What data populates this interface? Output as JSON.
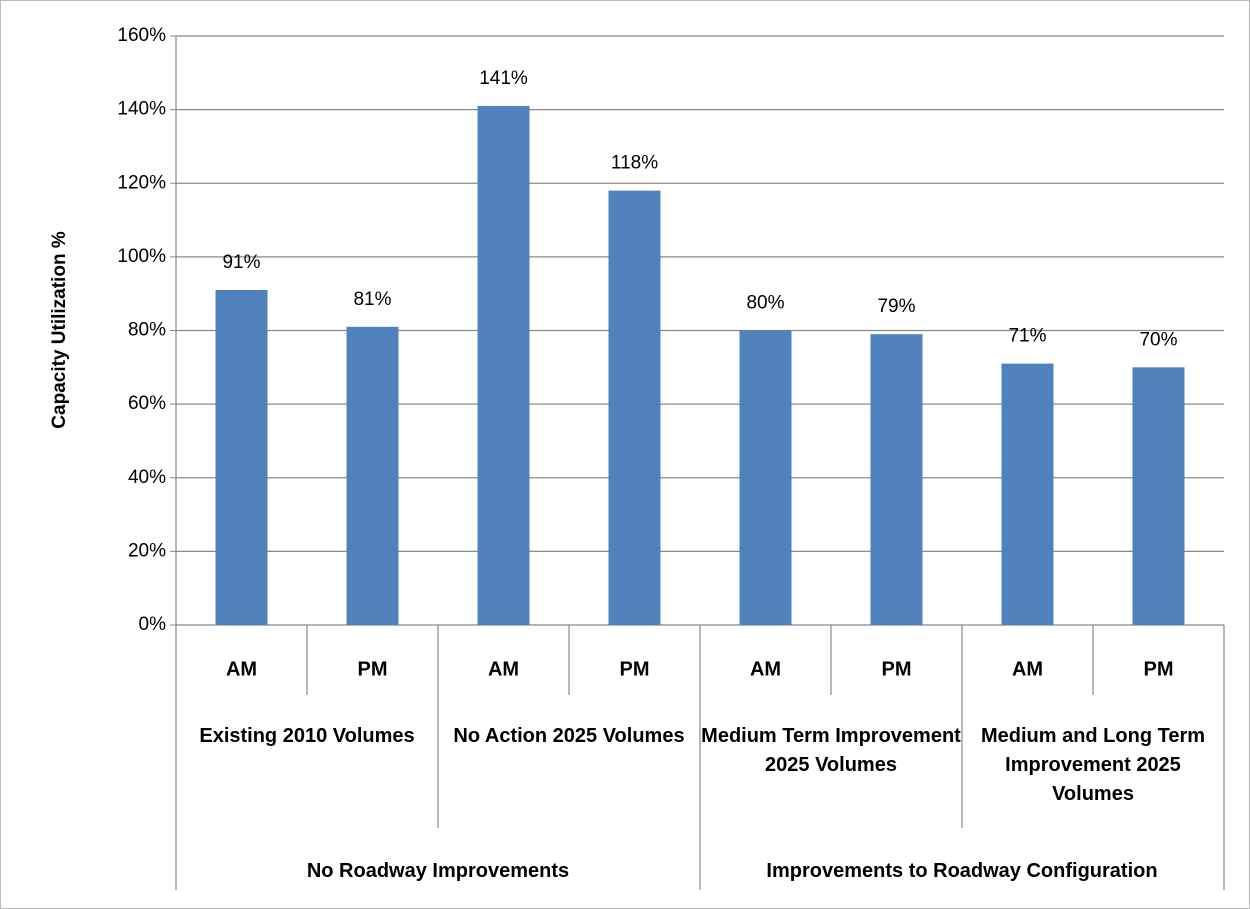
{
  "chart_data": {
    "type": "bar",
    "y_label": "Capacity Utilization %",
    "categories": [
      "AM",
      "PM",
      "AM",
      "PM",
      "AM",
      "PM",
      "AM",
      "PM"
    ],
    "groups": [
      "Existing 2010 Volumes",
      "No Action  2025 Volumes",
      "Medium Term Improvement  2025 Volumes",
      "Medium and Long Term Improvement 2025 Volumes"
    ],
    "supergroups": [
      "No Roadway Improvements",
      "Improvements to Roadway Configuration"
    ],
    "values": [
      91,
      81,
      141,
      118,
      80,
      79,
      71,
      70
    ],
    "value_labels": [
      "91%",
      "81%",
      "141%",
      "118%",
      "80%",
      "79%",
      "71%",
      "70%"
    ],
    "color": "#4f81bd",
    "ylim": [
      0,
      160
    ],
    "yticks": [
      {
        "value": 0,
        "label": "0%"
      },
      {
        "value": 20,
        "label": "20%"
      },
      {
        "value": 40,
        "label": "40%"
      },
      {
        "value": 60,
        "label": "60%"
      },
      {
        "value": 80,
        "label": "80%"
      },
      {
        "value": 100,
        "label": "100%"
      },
      {
        "value": 120,
        "label": "120%"
      },
      {
        "value": 140,
        "label": "140%"
      },
      {
        "value": 160,
        "label": "160%"
      }
    ],
    "grid": true
  }
}
